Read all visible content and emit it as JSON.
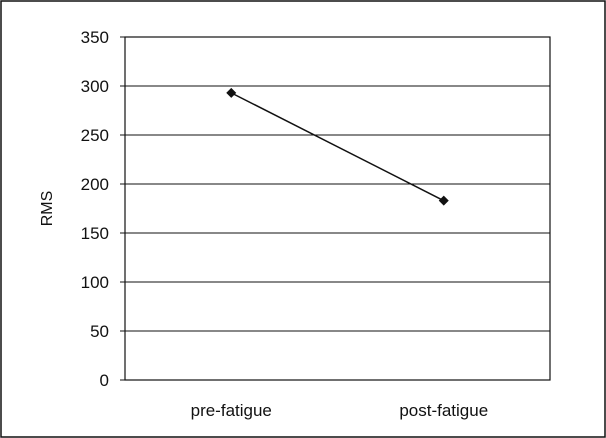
{
  "chart_data": {
    "type": "line",
    "title": "",
    "xlabel": "",
    "ylabel": "RMS",
    "categories": [
      "pre-fatigue",
      "post-fatigue"
    ],
    "series": [
      {
        "values": [
          293,
          183
        ]
      }
    ],
    "ylim": [
      0,
      350
    ],
    "yticks": [
      0,
      50,
      100,
      150,
      200,
      250,
      300,
      350
    ],
    "grid": true,
    "legend": "none",
    "colors": {
      "line": "#111111",
      "marker": "#111111",
      "grid": "#111111",
      "frame": "#111111"
    }
  }
}
